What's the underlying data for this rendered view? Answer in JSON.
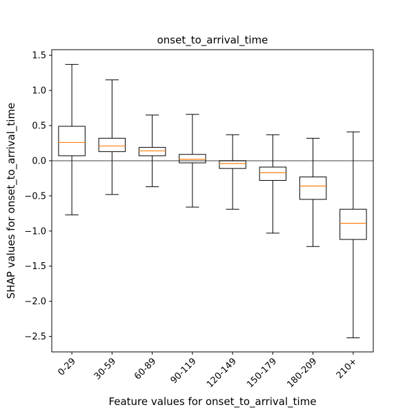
{
  "chart_data": {
    "type": "boxplot",
    "title": "onset_to_arrival_time",
    "xlabel": "Feature values for onset_to_arrival_time",
    "ylabel": "SHAP values for onset_to_arrival_time",
    "categories": [
      "0-29",
      "30-59",
      "60-89",
      "90-119",
      "120-149",
      "150-179",
      "180-209",
      "210+"
    ],
    "ylim": [
      -2.72,
      1.58
    ],
    "yticks": [
      1.5,
      1.0,
      0.5,
      0.0,
      -0.5,
      -1.0,
      -1.5,
      -2.0,
      -2.5
    ],
    "ytick_labels": [
      "1.5",
      "1.0",
      "0.5",
      "0.0",
      "−0.5",
      "−1.0",
      "−1.5",
      "−2.0",
      "−2.5"
    ],
    "reference_line": 0.0,
    "boxes": [
      {
        "category": "0-29",
        "whisker_low": -0.77,
        "q1": 0.07,
        "median": 0.26,
        "q3": 0.49,
        "whisker_high": 1.37
      },
      {
        "category": "30-59",
        "whisker_low": -0.48,
        "q1": 0.13,
        "median": 0.21,
        "q3": 0.32,
        "whisker_high": 1.15
      },
      {
        "category": "60-89",
        "whisker_low": -0.37,
        "q1": 0.07,
        "median": 0.14,
        "q3": 0.19,
        "whisker_high": 0.65
      },
      {
        "category": "90-119",
        "whisker_low": -0.66,
        "q1": -0.03,
        "median": 0.02,
        "q3": 0.09,
        "whisker_high": 0.66
      },
      {
        "category": "120-149",
        "whisker_low": -0.69,
        "q1": -0.11,
        "median": -0.04,
        "q3": 0.0,
        "whisker_high": 0.37
      },
      {
        "category": "150-179",
        "whisker_low": -1.03,
        "q1": -0.28,
        "median": -0.17,
        "q3": -0.09,
        "whisker_high": 0.37
      },
      {
        "category": "180-209",
        "whisker_low": -1.22,
        "q1": -0.55,
        "median": -0.36,
        "q3": -0.23,
        "whisker_high": 0.32
      },
      {
        "category": "210+",
        "whisker_low": -2.52,
        "q1": -1.12,
        "median": -0.89,
        "q3": -0.69,
        "whisker_high": 0.41
      }
    ],
    "colors": {
      "box": "#000000",
      "median": "#ff7f0e",
      "reference_line": "#808080"
    },
    "grid": false,
    "legend": "none"
  }
}
